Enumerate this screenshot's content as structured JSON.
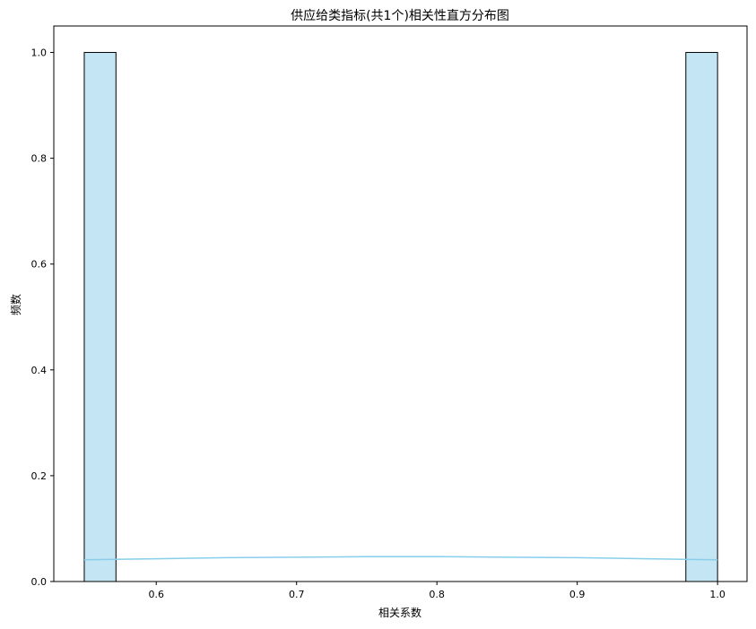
{
  "chart_data": {
    "type": "bar",
    "title": "供应给类指标(共1个)相关性直方分布图",
    "xlabel": "相关系数",
    "ylabel": "频数",
    "xlim": [
      0.527,
      1.021
    ],
    "ylim": [
      0,
      1.05
    ],
    "xticks": [
      "0.6",
      "0.7",
      "0.8",
      "0.9",
      "1.0"
    ],
    "xtick_values": [
      0.6,
      0.7,
      0.8,
      0.9,
      1.0
    ],
    "yticks": [
      "0.0",
      "0.2",
      "0.4",
      "0.6",
      "0.8",
      "1.0"
    ],
    "ytick_values": [
      0,
      0.2,
      0.4,
      0.6,
      0.8,
      1.0
    ],
    "bins": [
      {
        "x0": 0.5487,
        "x1": 0.5713,
        "count": 1
      },
      {
        "x0": 0.9774,
        "x1": 1.0,
        "count": 1
      }
    ],
    "kde": {
      "x": [
        0.5487,
        0.6,
        0.65,
        0.7,
        0.75,
        0.8,
        0.85,
        0.9,
        0.95,
        1.0
      ],
      "y": [
        0.041,
        0.043,
        0.045,
        0.046,
        0.047,
        0.047,
        0.046,
        0.045,
        0.043,
        0.041
      ]
    },
    "bar_color": "#c4e5f3",
    "kde_color": "#87ceeb",
    "grid": false
  }
}
